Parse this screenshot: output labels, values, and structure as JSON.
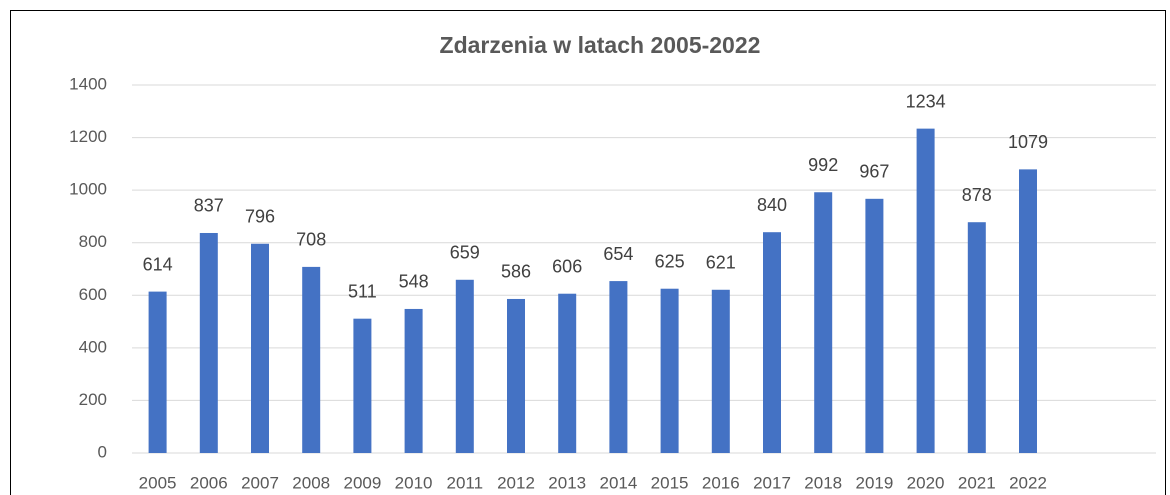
{
  "chart_data": {
    "type": "bar",
    "title": "Zdarzenia w latach 2005-2022",
    "categories": [
      "2005",
      "2006",
      "2007",
      "2008",
      "2009",
      "2010",
      "2011",
      "2012",
      "2013",
      "2014",
      "2015",
      "2016",
      "2017",
      "2018",
      "2019",
      "2020",
      "2021",
      "2022",
      null,
      null
    ],
    "values": [
      614,
      837,
      796,
      708,
      511,
      548,
      659,
      586,
      606,
      654,
      625,
      621,
      840,
      992,
      967,
      1234,
      878,
      1079,
      null,
      null
    ],
    "color": "#4472c4",
    "ylim": [
      0,
      1400
    ],
    "yticks": [
      0,
      200,
      400,
      600,
      800,
      1000,
      1200,
      1400
    ],
    "grid": true
  }
}
